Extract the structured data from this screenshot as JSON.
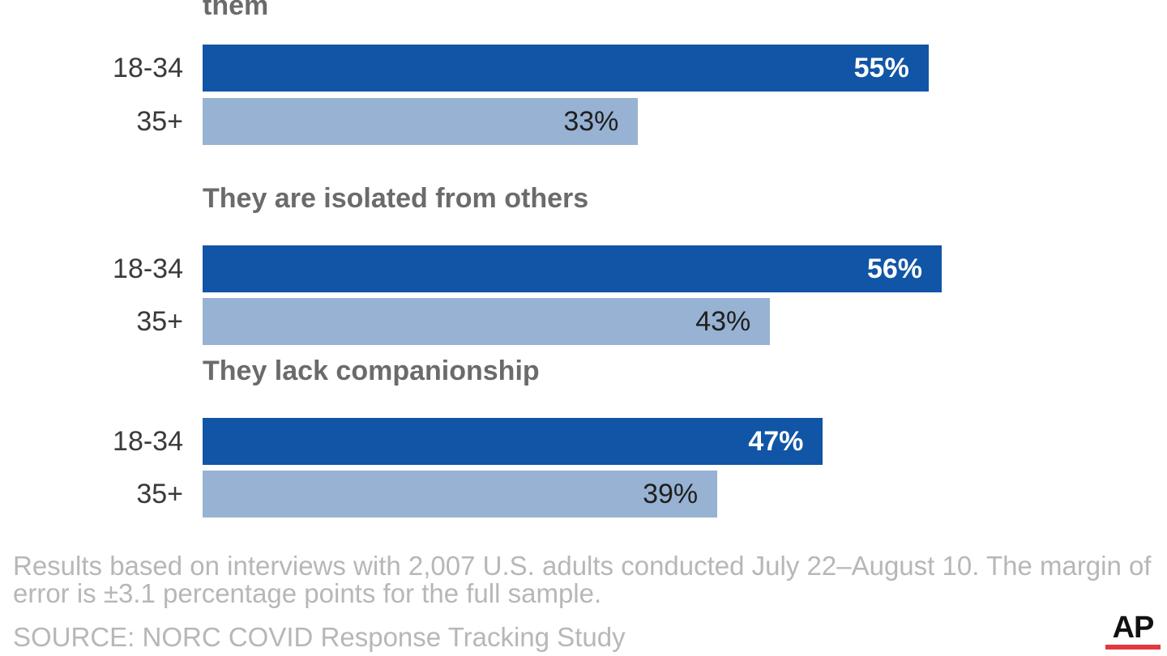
{
  "chart_data": {
    "type": "bar",
    "orientation": "horizontal",
    "groups": [
      {
        "title": "Difficulties were piling up so high that they could not overcome them",
        "bars": [
          {
            "category": "18-34",
            "value": 55,
            "label": "55%"
          },
          {
            "category": "35+",
            "value": 33,
            "label": "33%"
          }
        ]
      },
      {
        "title": "They are isolated from others",
        "bars": [
          {
            "category": "18-34",
            "value": 56,
            "label": "56%"
          },
          {
            "category": "35+",
            "value": 43,
            "label": "43%"
          }
        ]
      },
      {
        "title": "They lack companionship",
        "bars": [
          {
            "category": "18-34",
            "value": 47,
            "label": "47%"
          },
          {
            "category": "35+",
            "value": 39,
            "label": "39%"
          }
        ]
      }
    ],
    "colors": {
      "18-34": "#1155a6",
      "35+": "#97b2d2"
    },
    "xlim": [
      0,
      100
    ],
    "grid": false
  },
  "footnote": "Results based on interviews with 2,007 U.S. adults conducted July 22–August 10. The margin of error is ±3.1 percentage points for the full sample.",
  "source": "SOURCE: NORC COVID Response Tracking Study",
  "logo": {
    "text": "AP"
  }
}
